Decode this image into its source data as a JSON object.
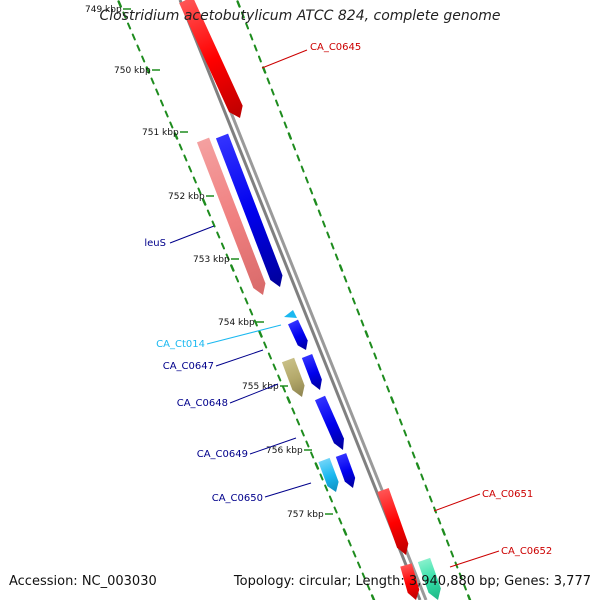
{
  "title": "Clostridium acetobutylicum ATCC 824, complete genome",
  "accession": "Accession: NC_003030",
  "summary": "Topology: circular; Length: 3,940,880 bp; Genes: 3,777",
  "colors": {
    "backbone": "#808080",
    "tick_marks": "#1e8c1e",
    "plus_gene": "#0000ee",
    "minus_gene": "#ff0000",
    "light_red": "#f08080",
    "khaki": "#b3a86a",
    "cyan": "#1ab8f0",
    "teal": "#33e0a8"
  },
  "ticks": [
    "749 kbp",
    "750 kbp",
    "751 kbp",
    "752 kbp",
    "753 kbp",
    "754 kbp",
    "755 kbp",
    "756 kbp",
    "757 kbp"
  ],
  "genes": [
    {
      "label": "CA_C0645",
      "color": "#cc0000",
      "name": "gene-ca-c0645"
    },
    {
      "label": "leuS",
      "color": "#00008b",
      "name": "gene-leus"
    },
    {
      "label": "CA_Ct014",
      "color": "#1ab8f0",
      "name": "gene-ca-ct014"
    },
    {
      "label": "CA_C0647",
      "color": "#00008b",
      "name": "gene-ca-c0647"
    },
    {
      "label": "CA_C0648",
      "color": "#00008b",
      "name": "gene-ca-c0648"
    },
    {
      "label": "CA_C0649",
      "color": "#00008b",
      "name": "gene-ca-c0649"
    },
    {
      "label": "CA_C0650",
      "color": "#00008b",
      "name": "gene-ca-c0650"
    },
    {
      "label": "CA_C0651",
      "color": "#cc0000",
      "name": "gene-ca-c0651"
    },
    {
      "label": "CA_C0652",
      "color": "#cc0000",
      "name": "gene-ca-c0652"
    }
  ]
}
